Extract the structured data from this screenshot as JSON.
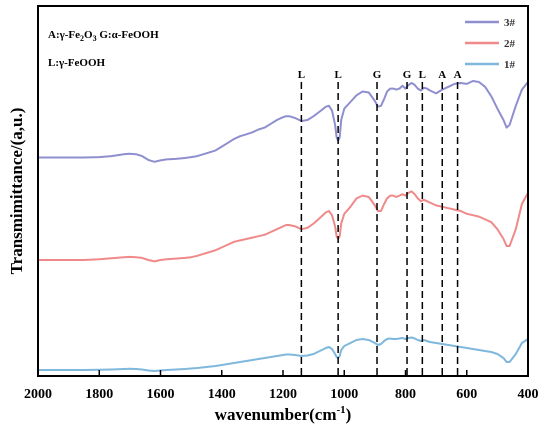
{
  "chart_data": {
    "type": "line",
    "title": "",
    "xlabel": "wavenumber(cm",
    "xlabel_sup": "-1",
    "xlabel_close": ")",
    "ylabel": "Transmimittance/(a,u.)",
    "xlim": [
      2000,
      400
    ],
    "x_reversed": true,
    "y_ticks": false,
    "grid": false,
    "legend_placement": "top-right",
    "x_ticks": [
      "2000",
      "1800",
      "1600",
      "1400",
      "1200",
      "1000",
      "800",
      "600",
      "400"
    ],
    "x_tick_values": [
      2000,
      1800,
      1600,
      1400,
      1200,
      1000,
      800,
      600,
      400
    ],
    "annotation": {
      "line1_a": "A:γ-Fe",
      "line1_sub1": "2",
      "line1_b": "O",
      "line1_sub2": "3",
      "line1_c": " G:α-FeOOH",
      "line2": "L:γ-FeOOH"
    },
    "markers": [
      {
        "label": "L",
        "x": 1140
      },
      {
        "label": "L",
        "x": 1020
      },
      {
        "label": "G",
        "x": 893
      },
      {
        "label": "G",
        "x": 795
      },
      {
        "label": "L",
        "x": 745
      },
      {
        "label": "A",
        "x": 680
      },
      {
        "label": "A",
        "x": 630
      }
    ],
    "series": [
      {
        "name": "3#",
        "color": "#8f8fd0",
        "x": [
          2000,
          1950,
          1900,
          1850,
          1800,
          1760,
          1720,
          1700,
          1680,
          1660,
          1640,
          1620,
          1600,
          1580,
          1550,
          1520,
          1500,
          1480,
          1450,
          1420,
          1400,
          1380,
          1360,
          1340,
          1320,
          1300,
          1280,
          1260,
          1240,
          1220,
          1200,
          1190,
          1180,
          1160,
          1140,
          1120,
          1100,
          1080,
          1060,
          1050,
          1040,
          1030,
          1025,
          1020,
          1015,
          1010,
          1000,
          980,
          960,
          940,
          920,
          900,
          890,
          880,
          870,
          860,
          850,
          840,
          830,
          820,
          810,
          800,
          790,
          780,
          770,
          760,
          750,
          740,
          730,
          720,
          700,
          680,
          660,
          640,
          620,
          600,
          580,
          560,
          540,
          520,
          500,
          480,
          470,
          460,
          440,
          420,
          400
        ],
        "y": [
          0.205,
          0.205,
          0.205,
          0.205,
          0.21,
          0.22,
          0.24,
          0.245,
          0.24,
          0.22,
          0.18,
          0.16,
          0.175,
          0.185,
          0.19,
          0.2,
          0.21,
          0.22,
          0.25,
          0.28,
          0.32,
          0.36,
          0.4,
          0.43,
          0.45,
          0.47,
          0.5,
          0.52,
          0.56,
          0.6,
          0.63,
          0.64,
          0.64,
          0.62,
          0.59,
          0.6,
          0.64,
          0.69,
          0.74,
          0.75,
          0.7,
          0.55,
          0.42,
          0.38,
          0.42,
          0.6,
          0.72,
          0.79,
          0.86,
          0.9,
          0.89,
          0.8,
          0.74,
          0.75,
          0.82,
          0.9,
          0.93,
          0.93,
          0.92,
          0.93,
          0.96,
          0.93,
          0.97,
          0.99,
          0.97,
          0.93,
          0.91,
          0.94,
          0.93,
          0.91,
          0.88,
          0.92,
          0.95,
          0.98,
          0.99,
          0.98,
          1.01,
          1.0,
          0.95,
          0.85,
          0.72,
          0.6,
          0.52,
          0.55,
          0.75,
          0.92,
          1.0
        ]
      },
      {
        "name": "2#",
        "color": "#f08a8a",
        "x": [
          2000,
          1950,
          1900,
          1850,
          1800,
          1760,
          1720,
          1700,
          1680,
          1660,
          1640,
          1620,
          1600,
          1580,
          1550,
          1520,
          1500,
          1480,
          1450,
          1420,
          1400,
          1380,
          1360,
          1340,
          1320,
          1300,
          1280,
          1260,
          1240,
          1220,
          1200,
          1190,
          1180,
          1160,
          1140,
          1120,
          1100,
          1080,
          1060,
          1050,
          1040,
          1030,
          1025,
          1020,
          1015,
          1010,
          1000,
          980,
          960,
          940,
          920,
          900,
          890,
          880,
          870,
          860,
          850,
          840,
          830,
          820,
          810,
          800,
          790,
          780,
          770,
          760,
          750,
          740,
          730,
          720,
          700,
          680,
          660,
          640,
          620,
          600,
          580,
          560,
          540,
          520,
          500,
          480,
          470,
          460,
          440,
          420,
          400
        ],
        "y": [
          0.0,
          0.0,
          0.0,
          0.0,
          0.005,
          0.012,
          0.02,
          0.022,
          0.02,
          0.015,
          0.0,
          -0.01,
          0.0,
          0.005,
          0.01,
          0.015,
          0.02,
          0.03,
          0.05,
          0.07,
          0.09,
          0.11,
          0.13,
          0.14,
          0.15,
          0.16,
          0.17,
          0.18,
          0.2,
          0.22,
          0.24,
          0.25,
          0.25,
          0.24,
          0.22,
          0.23,
          0.26,
          0.3,
          0.34,
          0.35,
          0.32,
          0.24,
          0.17,
          0.15,
          0.17,
          0.26,
          0.33,
          0.38,
          0.44,
          0.46,
          0.45,
          0.39,
          0.35,
          0.35,
          0.4,
          0.44,
          0.46,
          0.46,
          0.45,
          0.46,
          0.47,
          0.46,
          0.48,
          0.49,
          0.47,
          0.44,
          0.42,
          0.43,
          0.42,
          0.41,
          0.39,
          0.38,
          0.37,
          0.36,
          0.35,
          0.33,
          0.32,
          0.31,
          0.29,
          0.27,
          0.22,
          0.15,
          0.1,
          0.1,
          0.22,
          0.4,
          0.48
        ]
      },
      {
        "name": "1#",
        "color": "#7fb8dc",
        "x": [
          2000,
          1950,
          1900,
          1850,
          1800,
          1760,
          1720,
          1700,
          1680,
          1660,
          1640,
          1620,
          1600,
          1580,
          1550,
          1520,
          1500,
          1480,
          1450,
          1420,
          1400,
          1380,
          1360,
          1340,
          1320,
          1300,
          1280,
          1260,
          1240,
          1220,
          1200,
          1190,
          1180,
          1160,
          1140,
          1120,
          1100,
          1080,
          1060,
          1050,
          1040,
          1030,
          1025,
          1020,
          1015,
          1010,
          1000,
          980,
          960,
          940,
          920,
          900,
          890,
          880,
          870,
          860,
          850,
          840,
          830,
          820,
          810,
          800,
          790,
          780,
          770,
          760,
          750,
          740,
          730,
          720,
          700,
          680,
          660,
          640,
          620,
          600,
          580,
          560,
          540,
          520,
          500,
          480,
          470,
          460,
          440,
          420,
          400
        ],
        "y": [
          -0.4,
          -0.4,
          -0.4,
          -0.4,
          -0.398,
          -0.395,
          -0.39,
          -0.388,
          -0.39,
          -0.395,
          -0.405,
          -0.41,
          -0.405,
          -0.4,
          -0.395,
          -0.39,
          -0.385,
          -0.38,
          -0.37,
          -0.36,
          -0.35,
          -0.34,
          -0.33,
          -0.32,
          -0.31,
          -0.3,
          -0.29,
          -0.28,
          -0.27,
          -0.26,
          -0.25,
          -0.245,
          -0.245,
          -0.25,
          -0.26,
          -0.255,
          -0.24,
          -0.21,
          -0.18,
          -0.17,
          -0.19,
          -0.24,
          -0.27,
          -0.28,
          -0.26,
          -0.2,
          -0.16,
          -0.13,
          -0.1,
          -0.09,
          -0.1,
          -0.13,
          -0.15,
          -0.14,
          -0.11,
          -0.09,
          -0.085,
          -0.09,
          -0.09,
          -0.085,
          -0.08,
          -0.09,
          -0.08,
          -0.075,
          -0.085,
          -0.1,
          -0.11,
          -0.1,
          -0.11,
          -0.12,
          -0.13,
          -0.14,
          -0.15,
          -0.16,
          -0.17,
          -0.18,
          -0.19,
          -0.2,
          -0.21,
          -0.22,
          -0.24,
          -0.28,
          -0.32,
          -0.32,
          -0.24,
          -0.13,
          -0.09
        ]
      }
    ]
  }
}
